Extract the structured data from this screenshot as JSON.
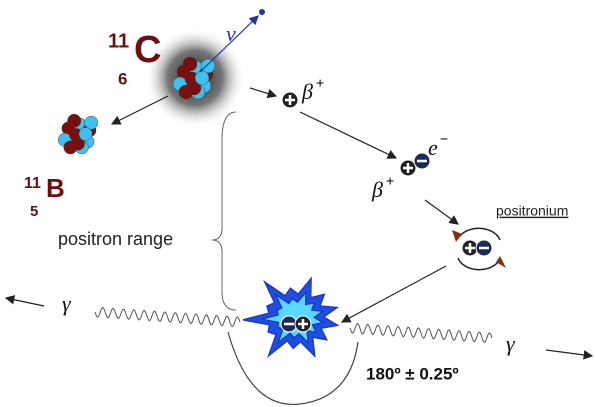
{
  "carbon": {
    "mass": "11",
    "symbol": "C",
    "number": "6"
  },
  "boron": {
    "mass": "11",
    "symbol": "B",
    "number": "5"
  },
  "neutrino": "ν",
  "positron": {
    "symbol": "β",
    "charge": "+"
  },
  "electron": {
    "symbol": "e",
    "charge": "−"
  },
  "positron_2": {
    "symbol": "β",
    "charge": "+"
  },
  "positronium": "positronium",
  "positron_range": "positron range",
  "gamma_left": "γ",
  "gamma_right": "γ",
  "angle": "180º ± 0.25º"
}
